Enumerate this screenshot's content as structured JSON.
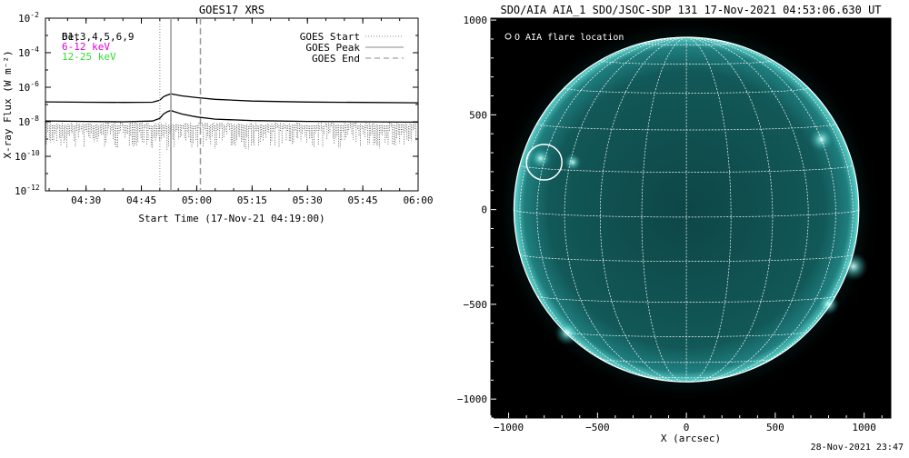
{
  "chart_data": [
    {
      "type": "line",
      "title": "GOES17 XRS",
      "xlabel": "Start Time (17-Nov-21 04:19:00)",
      "ylabel": "X-ray Flux (W m⁻²)",
      "y_scale": "log",
      "ylim_exponent": [
        -12,
        -2
      ],
      "y_ticks": [
        {
          "exp": -2,
          "label": "10",
          "sup": "-2"
        },
        {
          "exp": -4,
          "label": "10",
          "sup": "-4"
        },
        {
          "exp": -6,
          "label": "10",
          "sup": "-6"
        },
        {
          "exp": -8,
          "label": "10",
          "sup": "-8"
        },
        {
          "exp": -10,
          "label": "10",
          "sup": "-10"
        },
        {
          "exp": -12,
          "label": "10",
          "sup": "-12"
        }
      ],
      "x_range_minutes": [
        259,
        360
      ],
      "x_ticks": [
        {
          "min": 270,
          "label": "04:30"
        },
        {
          "min": 285,
          "label": "04:45"
        },
        {
          "min": 300,
          "label": "05:00"
        },
        {
          "min": 315,
          "label": "05:15"
        },
        {
          "min": 330,
          "label": "05:30"
        },
        {
          "min": 345,
          "label": "05:45"
        },
        {
          "min": 360,
          "label": "06:00"
        }
      ],
      "overlay_labels": [
        {
          "text": "Det",
          "color": "#000000"
        },
        {
          "text": "61,3,4,5,6,9",
          "color": "#000000"
        },
        {
          "text": "6-12 keV",
          "color": "#dd00dd"
        },
        {
          "text": "12-25 keV",
          "color": "#33dd33"
        }
      ],
      "legend_position": "top-right",
      "legend": [
        {
          "label": "GOES Start",
          "style": "dotted"
        },
        {
          "label": "GOES Peak",
          "style": "solid"
        },
        {
          "label": "GOES End",
          "style": "dashed"
        }
      ],
      "event_minutes": {
        "start": 290,
        "peak": 293,
        "end": 301
      },
      "series": [
        {
          "color": "#000000",
          "x": [
            259,
            270,
            280,
            288,
            290,
            291,
            292,
            293,
            294,
            296,
            300,
            305,
            315,
            330,
            345,
            360
          ],
          "log_values": [
            -6.85,
            -6.87,
            -6.88,
            -6.87,
            -6.75,
            -6.55,
            -6.45,
            -6.38,
            -6.42,
            -6.5,
            -6.6,
            -6.7,
            -6.8,
            -6.86,
            -6.88,
            -6.9
          ]
        },
        {
          "color": "#000000",
          "x": [
            259,
            270,
            280,
            288,
            290,
            291,
            292,
            293,
            294,
            296,
            300,
            305,
            315,
            330,
            345,
            360
          ],
          "log_values": [
            -7.95,
            -7.98,
            -8.0,
            -7.96,
            -7.8,
            -7.55,
            -7.42,
            -7.35,
            -7.42,
            -7.55,
            -7.72,
            -7.85,
            -7.93,
            -7.98,
            -8.0,
            -8.02
          ]
        }
      ]
    },
    {
      "type": "image",
      "title": "SDO/AIA AIA_1 SDO/JSOC-SDP 131 17-Nov-2021 04:53:06.630 UT",
      "xlabel": "X (arcsec)",
      "ylabel": "",
      "xlim": [
        -1100,
        1150
      ],
      "ylim": [
        -1100,
        1010
      ],
      "x_ticks": [
        -1000,
        -500,
        0,
        500,
        1000
      ],
      "y_ticks": [
        -1000,
        -500,
        0,
        500,
        1000
      ],
      "disk_radius_arcsec": 970,
      "legend": "O AIA flare location",
      "legend_position": "top-left",
      "flare_location": {
        "x": -800,
        "y": 250,
        "radius": 100
      },
      "bright_regions": [
        {
          "x": -820,
          "y": 270,
          "r": 60
        },
        {
          "x": 760,
          "y": 370,
          "r": 70
        },
        {
          "x": 940,
          "y": -300,
          "r": 80
        },
        {
          "x": -640,
          "y": 250,
          "r": 50
        },
        {
          "x": -670,
          "y": -650,
          "r": 70
        },
        {
          "x": 800,
          "y": -500,
          "r": 60
        }
      ]
    }
  ],
  "footer": {
    "timestamp": "28-Nov-2021 23:47"
  }
}
